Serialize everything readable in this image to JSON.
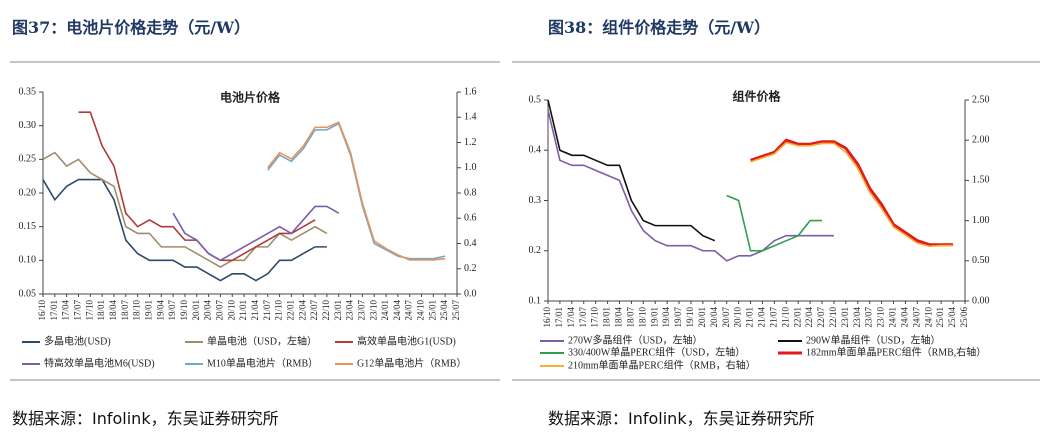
{
  "captions": [
    "图37：电池片价格走势（元/W）",
    "图38：组件价格走势（元/W）"
  ],
  "sources": [
    "数据来源：Infolink，东吴证券研究所",
    "数据来源：Infolink，东吴证券研究所"
  ],
  "chart_data": [
    {
      "type": "line",
      "title": "电池片价格",
      "categories": [
        "16/10",
        "17/01",
        "17/04",
        "17/07",
        "17/10",
        "18/01",
        "18/04",
        "18/07",
        "18/10",
        "19/01",
        "19/04",
        "19/07",
        "19/10",
        "20/01",
        "20/04",
        "20/07",
        "20/10",
        "21/01",
        "21/04",
        "21/07",
        "21/10",
        "22/01",
        "22/04",
        "22/07",
        "22/10",
        "23/01",
        "23/04",
        "23/07",
        "23/10",
        "24/01",
        "24/04",
        "24/07",
        "24/10",
        "25/01",
        "25/04",
        "25/07"
      ],
      "ylim": [
        0.05,
        0.35
      ],
      "yticks": [
        0.05,
        {
          "value": 0.1,
          "label": "0.10"
        },
        0.15,
        {
          "value": 0.2,
          "label": "0.20"
        },
        0.25,
        {
          "value": 0.3,
          "label": "0.30"
        },
        0.35
      ],
      "y2lim": [
        0,
        1.6
      ],
      "y2ticks": [
        {
          "value": 0,
          "label": "0.0"
        },
        0.2,
        0.4,
        0.6,
        0.8,
        {
          "value": 1,
          "label": "1.0"
        },
        1.2,
        1.4,
        1.6
      ],
      "grid": false,
      "series": [
        {
          "name": "多晶电池(USD)",
          "color": "#2e4a6b",
          "values": [
            0.22,
            0.19,
            0.21,
            0.22,
            0.22,
            0.22,
            0.19,
            0.13,
            0.11,
            0.1,
            0.1,
            0.1,
            0.09,
            0.09,
            0.08,
            0.07,
            0.08,
            0.08,
            0.07,
            0.08,
            0.1,
            0.1,
            0.11,
            0.12,
            0.12,
            null,
            null,
            null,
            null,
            null,
            null,
            null,
            null,
            null,
            null,
            null
          ]
        },
        {
          "name": "单晶电池（USD，左轴）",
          "color": "#a08c6a",
          "values": [
            0.25,
            0.26,
            0.24,
            0.25,
            0.23,
            0.22,
            0.21,
            0.15,
            0.14,
            0.14,
            0.12,
            0.12,
            0.12,
            0.11,
            0.1,
            0.09,
            0.1,
            0.1,
            0.12,
            0.12,
            0.14,
            0.13,
            0.14,
            0.15,
            0.14,
            null,
            null,
            null,
            null,
            null,
            null,
            null,
            null,
            null,
            null,
            null
          ]
        },
        {
          "name": "高效单晶电池G1(USD)",
          "color": "#b03a3a",
          "values": [
            null,
            null,
            null,
            0.32,
            0.32,
            0.27,
            0.24,
            0.17,
            0.15,
            0.16,
            0.15,
            0.15,
            0.13,
            0.13,
            0.11,
            0.1,
            0.1,
            0.11,
            0.12,
            0.13,
            0.14,
            0.14,
            0.15,
            0.16,
            null,
            null,
            null,
            null,
            null,
            null,
            null,
            null,
            null,
            null,
            null,
            null
          ]
        },
        {
          "name": "特高效单晶电池M6(USD)",
          "color": "#7b5ea7",
          "values": [
            null,
            null,
            null,
            null,
            null,
            null,
            null,
            null,
            null,
            null,
            null,
            0.17,
            0.14,
            0.13,
            0.11,
            0.1,
            0.11,
            0.12,
            0.13,
            0.14,
            0.15,
            0.14,
            0.16,
            0.18,
            0.18,
            0.17,
            null,
            null,
            null,
            null,
            null,
            null,
            null,
            null,
            null,
            null
          ]
        },
        {
          "name": "M10单晶电池片（RMB）",
          "color": "#6fa8c8",
          "axis": "y2",
          "values": [
            null,
            null,
            null,
            null,
            null,
            null,
            null,
            null,
            null,
            null,
            null,
            null,
            null,
            null,
            null,
            null,
            null,
            null,
            null,
            0.98,
            1.1,
            1.05,
            1.15,
            1.3,
            1.3,
            1.35,
            1.1,
            0.7,
            0.4,
            0.35,
            0.3,
            0.28,
            0.28,
            0.28,
            0.3,
            null
          ]
        },
        {
          "name": "G12单晶电池片（RMB）",
          "color": "#e8935a",
          "axis": "y2",
          "values": [
            null,
            null,
            null,
            null,
            null,
            null,
            null,
            null,
            null,
            null,
            null,
            null,
            null,
            null,
            null,
            null,
            null,
            null,
            null,
            1.0,
            1.12,
            1.07,
            1.17,
            1.32,
            1.32,
            1.36,
            1.12,
            0.72,
            0.42,
            0.36,
            0.31,
            0.27,
            0.27,
            0.27,
            0.28,
            null
          ]
        }
      ]
    },
    {
      "type": "line",
      "title": "组件价格",
      "categories": [
        "16/10",
        "17/01",
        "17/04",
        "17/07",
        "17/10",
        "18/01",
        "18/04",
        "18/07",
        "18/10",
        "19/01",
        "19/04",
        "19/07",
        "19/10",
        "20/01",
        "20/04",
        "20/07",
        "20/10",
        "21/01",
        "21/04",
        "21/07",
        "21/10",
        "22/01",
        "22/04",
        "22/07",
        "22/10",
        "23/01",
        "23/04",
        "23/07",
        "23/10",
        "24/01",
        "24/04",
        "24/07",
        "24/10",
        "25/01",
        "25/04",
        "25/06"
      ],
      "ylim": [
        0.1,
        0.5
      ],
      "yticks": [
        0.1,
        0.2,
        0.3,
        0.4,
        0.5
      ],
      "y2lim": [
        0,
        2.5
      ],
      "y2ticks": [
        {
          "value": 0,
          "label": "0.00"
        },
        {
          "value": 0.5,
          "label": "0.50"
        },
        {
          "value": 1,
          "label": "1.00"
        },
        {
          "value": 1.5,
          "label": "1.50"
        },
        {
          "value": 2,
          "label": "2.00"
        },
        {
          "value": 2.5,
          "label": "2.50"
        }
      ],
      "grid": false,
      "series": [
        {
          "name": "270W多晶组件（USD，左轴）",
          "color": "#7b5ea7",
          "values": [
            0.48,
            0.38,
            0.37,
            0.37,
            0.36,
            0.35,
            0.34,
            0.28,
            0.24,
            0.22,
            0.21,
            0.21,
            0.21,
            0.2,
            0.2,
            0.18,
            0.19,
            0.19,
            0.2,
            0.22,
            0.23,
            0.23,
            0.23,
            0.23,
            0.23,
            null,
            null,
            null,
            null,
            null,
            null,
            null,
            null,
            null,
            null,
            null
          ]
        },
        {
          "name": "290W单晶组件（USD，左轴）",
          "color": "#111111",
          "values": [
            0.5,
            0.4,
            0.39,
            0.39,
            0.38,
            0.37,
            0.37,
            0.3,
            0.26,
            0.25,
            0.25,
            0.25,
            0.25,
            0.23,
            0.22,
            null,
            null,
            null,
            null,
            null,
            null,
            null,
            null,
            null,
            null,
            null,
            null,
            null,
            null,
            null,
            null,
            null,
            null,
            null,
            null,
            null
          ]
        },
        {
          "name": "330/400W单晶PERC组件（USD，左轴）",
          "color": "#2ca04c",
          "values": [
            null,
            null,
            null,
            null,
            null,
            null,
            null,
            null,
            null,
            null,
            null,
            null,
            null,
            null,
            null,
            0.31,
            0.3,
            0.2,
            0.2,
            0.21,
            0.22,
            0.23,
            0.26,
            0.26,
            null,
            null,
            null,
            null,
            null,
            null,
            null,
            null,
            null,
            null,
            null,
            null
          ]
        },
        {
          "name": "182mm单面单晶PERC组件（RMB,右轴）",
          "color": "#e31a1c",
          "axis": "y2",
          "linewidth": 3,
          "values": [
            null,
            null,
            null,
            null,
            null,
            null,
            null,
            null,
            null,
            null,
            null,
            null,
            null,
            null,
            null,
            null,
            null,
            1.75,
            1.8,
            1.85,
            2.0,
            1.95,
            1.95,
            1.98,
            1.98,
            1.9,
            1.7,
            1.4,
            1.2,
            0.95,
            0.85,
            0.75,
            0.7,
            0.7,
            0.7,
            null
          ]
        },
        {
          "name": "210mm单面单晶PERC组件（RMB，右轴）",
          "color": "#f2b134",
          "axis": "y2",
          "values": [
            null,
            null,
            null,
            null,
            null,
            null,
            null,
            null,
            null,
            null,
            null,
            null,
            null,
            null,
            null,
            null,
            null,
            1.73,
            1.78,
            1.83,
            1.97,
            1.93,
            1.93,
            1.96,
            1.96,
            1.85,
            1.65,
            1.35,
            1.15,
            0.92,
            0.82,
            0.72,
            0.68,
            0.69,
            0.69,
            null
          ]
        }
      ]
    }
  ]
}
